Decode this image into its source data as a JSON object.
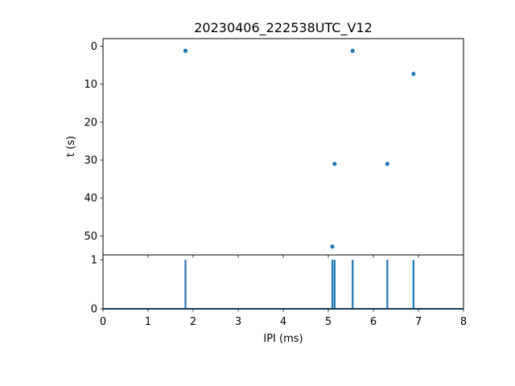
{
  "chart_data": [
    {
      "type": "scatter",
      "title": "20230406_222538UTC_V12",
      "xlabel": "",
      "ylabel": "t (s)",
      "xlim": [
        0,
        8
      ],
      "ylim": [
        55,
        -2
      ],
      "y_inverted": true,
      "yticks": [
        0,
        10,
        20,
        30,
        40,
        50
      ],
      "x_tick_labels_shown": false,
      "grid": false,
      "color": "#1f77b4",
      "points": [
        {
          "x": 1.83,
          "y": 1.2
        },
        {
          "x": 5.54,
          "y": 1.2
        },
        {
          "x": 6.89,
          "y": 7.3
        },
        {
          "x": 5.14,
          "y": 31.0
        },
        {
          "x": 6.31,
          "y": 31.0
        },
        {
          "x": 5.09,
          "y": 52.8
        }
      ]
    },
    {
      "type": "line",
      "xlabel": "IPI (ms)",
      "ylabel": "",
      "xlim": [
        0,
        8
      ],
      "ylim": [
        0,
        1.1
      ],
      "xticks": [
        0,
        1,
        2,
        3,
        4,
        5,
        6,
        7,
        8
      ],
      "yticks": [
        0,
        1
      ],
      "grid": false,
      "color": "#1f77b4",
      "spikes": [
        {
          "x": 1.83,
          "y": 1
        },
        {
          "x": 5.09,
          "y": 1
        },
        {
          "x": 5.14,
          "y": 1
        },
        {
          "x": 5.54,
          "y": 1
        },
        {
          "x": 6.31,
          "y": 1
        },
        {
          "x": 6.89,
          "y": 1
        }
      ]
    }
  ]
}
